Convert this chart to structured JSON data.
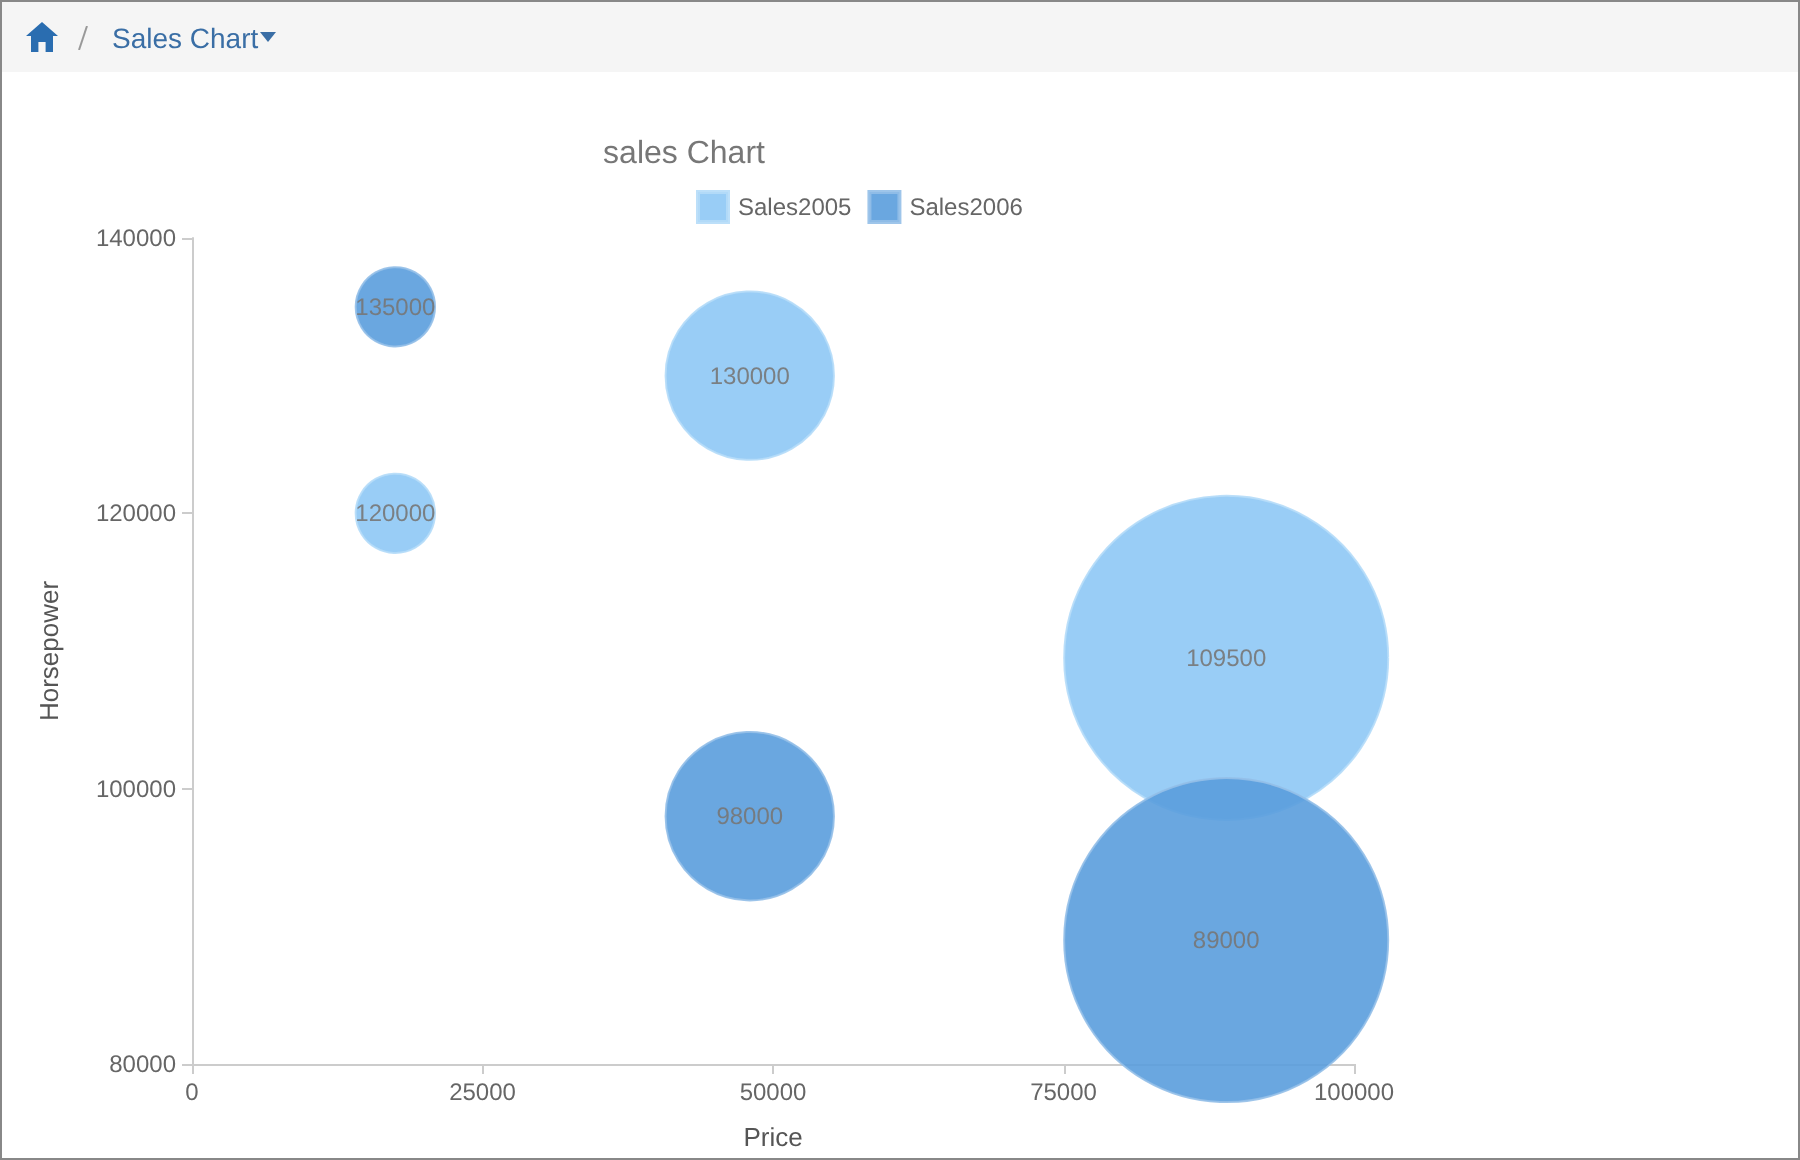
{
  "chart_data": {
    "type": "bubble",
    "title": "sales Chart",
    "xlabel": "Price",
    "ylabel": "Horsepower",
    "annotations": [
      "Sales Chart"
    ],
    "xlim": [
      0,
      100000
    ],
    "xticks": [
      0,
      25000,
      50000,
      75000,
      100000
    ],
    "ylim": [
      80000,
      140000
    ],
    "yticks": [
      80000,
      100000,
      120000,
      140000
    ],
    "grid": false,
    "legend": "top",
    "marker": "circle",
    "data_labels": true,
    "series": [
      {
        "name": "Sales2005",
        "color": "#8ec8f5",
        "x": [
          17500,
          48000,
          89000
        ],
        "values": [
          120000,
          130000,
          109500
        ],
        "sizes": [
          0.06,
          0.27,
          1
        ]
      },
      {
        "name": "Sales2006",
        "color": "#5a9ddd",
        "x": [
          17500,
          48000,
          89000
        ],
        "values": [
          135000,
          98000,
          89000
        ],
        "sizes": [
          0.06,
          0.27,
          1
        ]
      }
    ]
  }
}
